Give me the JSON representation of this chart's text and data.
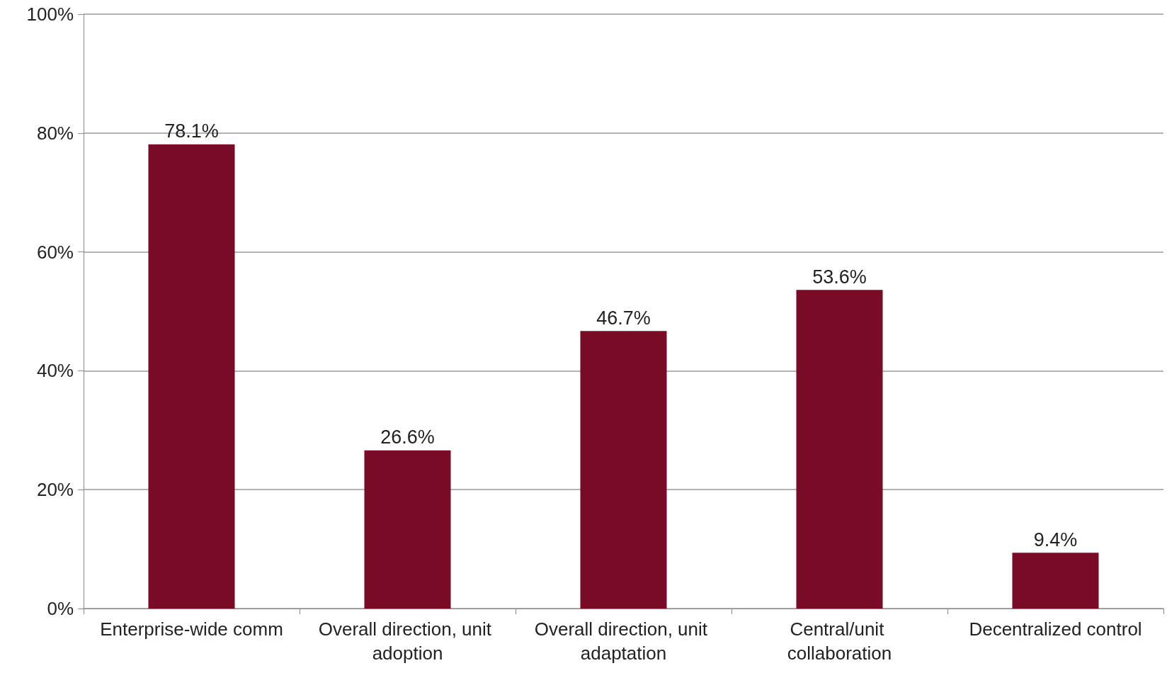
{
  "chart_data": {
    "type": "bar",
    "categories": [
      "Enterprise-wide comm",
      "Overall direction, unit adoption",
      "Overall direction, unit adaptation",
      "Central/unit collaboration",
      "Decentralized control"
    ],
    "values": [
      78.1,
      26.6,
      46.7,
      53.6,
      9.4
    ],
    "value_labels": [
      "78.1%",
      "26.6%",
      "46.7%",
      "53.6%",
      "9.4%"
    ],
    "color": "#7a0b27",
    "ylim": [
      0,
      100
    ],
    "yticks": [
      {
        "value": 0,
        "label": "0%"
      },
      {
        "value": 20,
        "label": "20%"
      },
      {
        "value": 40,
        "label": "40%"
      },
      {
        "value": 60,
        "label": "60%"
      },
      {
        "value": 80,
        "label": "80%"
      },
      {
        "value": 100,
        "label": "100%"
      }
    ],
    "grid": "y"
  }
}
